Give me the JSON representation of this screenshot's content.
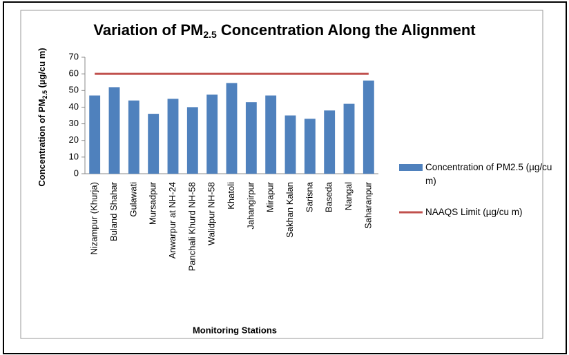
{
  "chart_data": {
    "type": "bar",
    "title": [
      "Variation of PM",
      "2.5",
      " Concentration Along the Alignment"
    ],
    "x_label": "Monitoring Stations",
    "y_label": [
      "Concentration of PM",
      "2.5",
      " (µg/cu m)"
    ],
    "categories": [
      "Nizampur  (Khurja)",
      "Buland Shahar",
      "Gulawati",
      "Mursadpur",
      "Anwarpur at NH-24",
      "Panchali Khurd NH-58",
      "Walidpur NH-58",
      "Khatoli",
      "Jahangirpur",
      "Mirapur",
      "Sakhan Kalan",
      "Sarisna",
      "Baseda",
      "Nangal",
      "Saharanpur"
    ],
    "series": [
      {
        "name": "Concentration of PM2.5 (µg/cu m)",
        "type": "bar",
        "color": "#4f81bd",
        "values": [
          47,
          52,
          44,
          36,
          45,
          40,
          47.5,
          54.5,
          43,
          47,
          35,
          33,
          38,
          42,
          56
        ]
      },
      {
        "name": "NAAQS Limit (µg/cu m)",
        "type": "line",
        "color": "#c0504d",
        "values": [
          60,
          60,
          60,
          60,
          60,
          60,
          60,
          60,
          60,
          60,
          60,
          60,
          60,
          60,
          60
        ]
      }
    ],
    "ylim": [
      0,
      70
    ],
    "yticks": [
      0,
      10,
      20,
      30,
      40,
      50,
      60,
      70
    ],
    "grid": false,
    "legend": "right"
  }
}
